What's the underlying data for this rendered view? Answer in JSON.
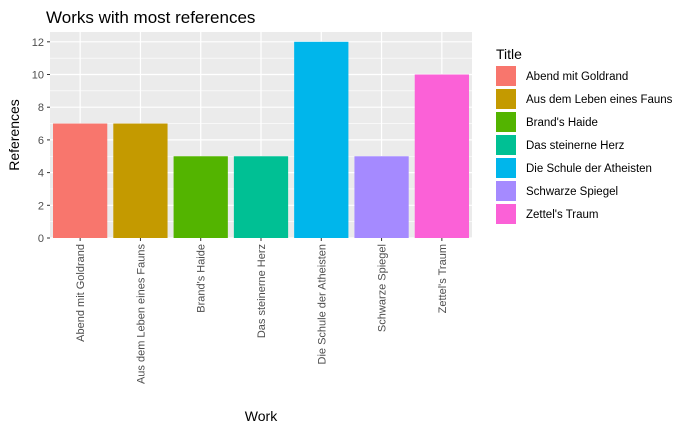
{
  "chart_data": {
    "type": "bar",
    "title": "Works with most references",
    "xlabel": "Work",
    "ylabel": "References",
    "categories": [
      "Abend mit Goldrand",
      "Aus dem Leben eines Fauns",
      "Brand's Haide",
      "Das steinerne Herz",
      "Die Schule der Atheisten",
      "Schwarze Spiegel",
      "Zettel's Traum"
    ],
    "values": [
      7,
      7,
      5,
      5,
      12,
      5,
      10
    ],
    "colors": [
      "#F8766D",
      "#C49A00",
      "#53B400",
      "#00C094",
      "#00B6EB",
      "#A58AFF",
      "#FB61D7"
    ],
    "ylim": [
      0,
      12.6
    ],
    "yticks": [
      "0",
      "2",
      "4",
      "6",
      "8",
      "10",
      "12"
    ],
    "grid": true,
    "panel_background": "#EBEBEB",
    "legend": {
      "title": "Title",
      "placement": "right",
      "entries": [
        "Abend mit Goldrand",
        "Aus dem Leben eines Fauns",
        "Brand's Haide",
        "Das steinerne Herz",
        "Die Schule der Atheisten",
        "Schwarze Spiegel",
        "Zettel's Traum"
      ]
    }
  }
}
